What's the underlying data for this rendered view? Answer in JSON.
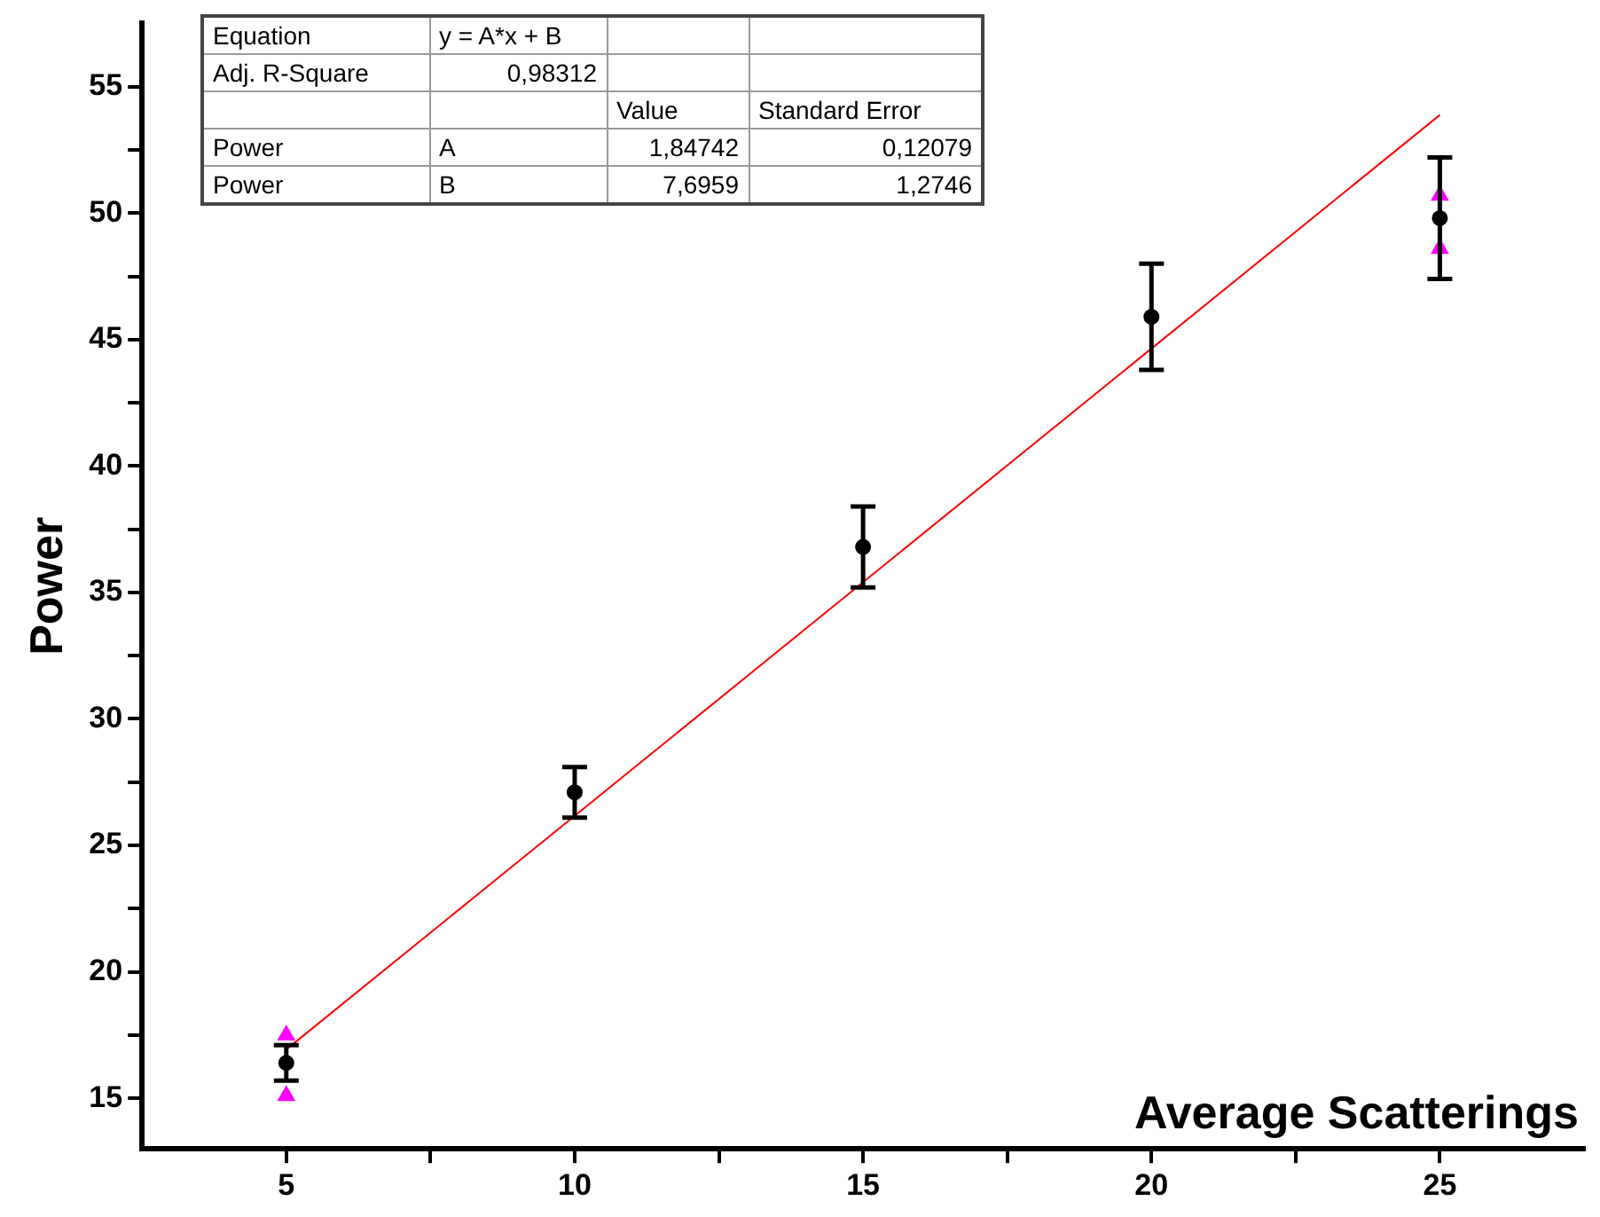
{
  "chart_data": {
    "type": "scatter",
    "xlabel": "Average Scatterings",
    "ylabel": "Power",
    "x": [
      5,
      10,
      15,
      20,
      25
    ],
    "series": [
      {
        "color": "#000000",
        "marker": "circle",
        "values": [
          16.4,
          27.1,
          36.8,
          45.9,
          49.8
        ],
        "errors": [
          0.7,
          1.0,
          1.6,
          2.1,
          2.4
        ]
      },
      {
        "color": "#ff00ff",
        "marker": "triangle",
        "values": [
          17.5,
          null,
          null,
          null,
          50.7
        ]
      },
      {
        "color": "#ff00ff",
        "marker": "triangle",
        "values": [
          15.1,
          null,
          null,
          null,
          48.6
        ]
      },
      {
        "type": "line",
        "color": "#ff0000",
        "x": [
          5,
          25
        ],
        "values": [
          16.93,
          53.88
        ]
      }
    ],
    "xlim": [
      2.5,
      27.5
    ],
    "ylim": [
      13,
      57.5
    ],
    "xticks": [
      5,
      {
        "value": 7.5,
        "label": null
      },
      10,
      {
        "value": 12.5,
        "label": null
      },
      15,
      {
        "value": 17.5,
        "label": null
      },
      20,
      {
        "value": 22.5,
        "label": null
      },
      25
    ],
    "yticks": [
      15,
      {
        "value": 17.5,
        "label": null
      },
      20,
      {
        "value": 22.5,
        "label": null
      },
      25,
      {
        "value": 27.5,
        "label": null
      },
      30,
      {
        "value": 32.5,
        "label": null
      },
      35,
      {
        "value": 37.5,
        "label": null
      },
      40,
      {
        "value": 42.5,
        "label": null
      },
      45,
      {
        "value": 47.5,
        "label": null
      },
      50,
      {
        "value": 52.5,
        "label": null
      },
      55
    ],
    "grid": false,
    "legend": false,
    "annotations": [
      "Equation",
      "y = A*x + B",
      "Adj. R-Square",
      "0,98312",
      "Value",
      "Standard Error",
      "Power",
      "A",
      "1,84742",
      "0,12079",
      "Power",
      "B",
      "7,6959",
      "1,2746"
    ]
  }
}
